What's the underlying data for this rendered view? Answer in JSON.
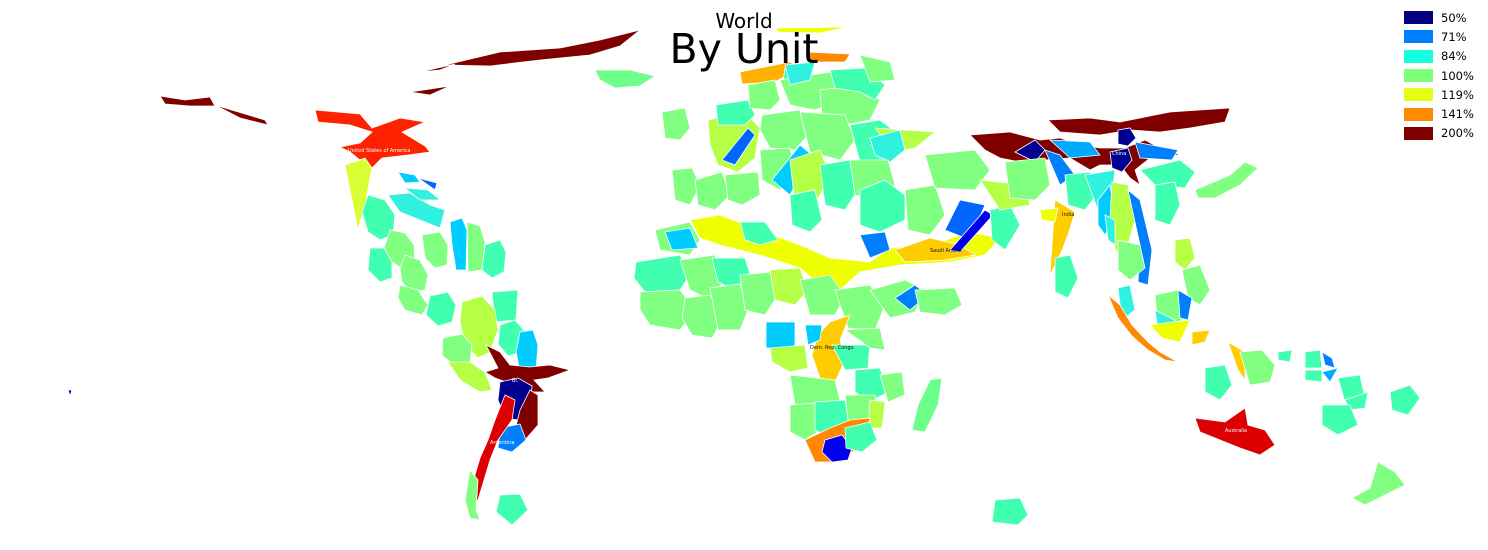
{
  "title": "World",
  "subtitle": "By Unit",
  "legend": [
    {
      "label": "50%",
      "color": "#000080"
    },
    {
      "label": "71%",
      "color": "#0080ff"
    },
    {
      "label": "84%",
      "color": "#15ffe1"
    },
    {
      "label": "100%",
      "color": "#7dff7a"
    },
    {
      "label": "119%",
      "color": "#e5ff13"
    },
    {
      "label": "141%",
      "color": "#ff8c00"
    },
    {
      "label": "200%",
      "color": "#800000"
    }
  ],
  "map_labels": {
    "usa": "United States of America",
    "china": "China",
    "india": "India",
    "saudi": "Saudi Arabia",
    "drc": "Dem. Rep. Congo",
    "australia": "Australia",
    "argentina": "Argentina",
    "brazil": "Br."
  },
  "colors": {
    "dark_red": "#800000",
    "red": "#dd0000",
    "orange_red": "#ff2200",
    "orange": "#ff8800",
    "gold": "#ffcc00",
    "yellow": "#eeff00",
    "lime": "#b5ff45",
    "green": "#80ff80",
    "mint": "#40ffb0",
    "aqua": "#30f0e0",
    "cyan": "#00ccff",
    "blue": "#0066ff",
    "navy": "#000090",
    "deep_blue": "#0000ee"
  }
}
